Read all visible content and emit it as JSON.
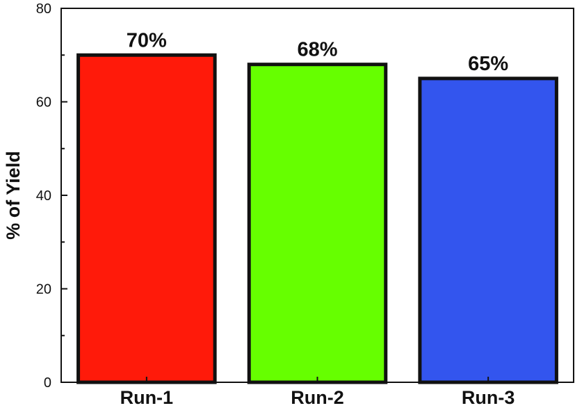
{
  "chart_data": {
    "type": "bar",
    "categories": [
      "Run-1",
      "Run-2",
      "Run-3"
    ],
    "values": [
      70,
      68,
      65
    ],
    "data_labels": [
      "70%",
      "68%",
      "65%"
    ],
    "colors": [
      "#ff1a0a",
      "#66ff00",
      "#3355ee"
    ],
    "ylabel": "% of Yield",
    "xlabel": "",
    "ylim": [
      0,
      80
    ],
    "yticks": [
      0,
      20,
      40,
      60,
      80
    ],
    "grid": false,
    "legend": "none"
  }
}
